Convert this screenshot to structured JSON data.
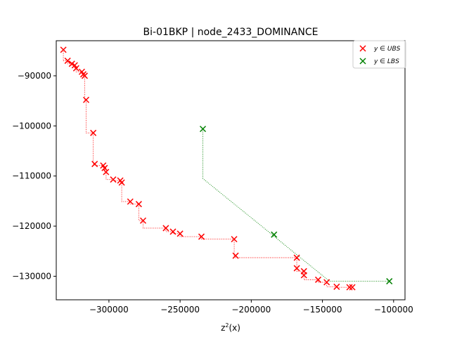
{
  "chart_data": {
    "type": "scatter",
    "title": "Bi-01BKP | node_2433_DOMINANCE",
    "xlabel": "z²(x)",
    "ylabel": "",
    "xlim": [
      -337000,
      -92000
    ],
    "ylim": [
      -134700,
      -83000
    ],
    "xticks": [
      -300000,
      -250000,
      -200000,
      -150000,
      -100000
    ],
    "xtick_labels": [
      "−300000",
      "−250000",
      "−200000",
      "−150000",
      "−100000"
    ],
    "yticks": [
      -90000,
      -100000,
      -110000,
      -120000,
      -130000
    ],
    "ytick_labels": [
      "−90000",
      "−100000",
      "−110000",
      "−120000",
      "−130000"
    ],
    "grid": false,
    "legend_position": "top-right",
    "series": [
      {
        "name": "y ∈ UBS",
        "marker": "x",
        "color": "#ff0000",
        "connect": "staircase-dotted",
        "points": [
          [
            -332000,
            -84800
          ],
          [
            -329000,
            -87000
          ],
          [
            -326000,
            -87600
          ],
          [
            -324000,
            -87900
          ],
          [
            -323000,
            -88500
          ],
          [
            -319000,
            -89200
          ],
          [
            -318000,
            -89700
          ],
          [
            -317000,
            -90000
          ],
          [
            -316000,
            -94800
          ],
          [
            -311000,
            -101400
          ],
          [
            -310000,
            -107600
          ],
          [
            -304000,
            -107900
          ],
          [
            -303000,
            -108400
          ],
          [
            -302000,
            -109200
          ],
          [
            -297000,
            -110700
          ],
          [
            -292000,
            -110900
          ],
          [
            -291000,
            -111300
          ],
          [
            -285000,
            -115100
          ],
          [
            -279000,
            -115600
          ],
          [
            -276000,
            -118900
          ],
          [
            -260000,
            -120400
          ],
          [
            -255000,
            -121100
          ],
          [
            -250000,
            -121500
          ],
          [
            -235000,
            -122100
          ],
          [
            -212000,
            -122600
          ],
          [
            -211000,
            -125900
          ],
          [
            -168000,
            -126300
          ],
          [
            -168000,
            -128400
          ],
          [
            -163000,
            -129000
          ],
          [
            -163000,
            -129800
          ],
          [
            -153000,
            -130700
          ],
          [
            -147000,
            -131200
          ],
          [
            -140000,
            -132100
          ],
          [
            -131000,
            -132200
          ],
          [
            -129000,
            -132200
          ]
        ]
      },
      {
        "name": "y ∈ LBS",
        "marker": "x",
        "color": "#008000",
        "connect": "dotted",
        "points": [
          [
            -234000,
            -100600
          ],
          [
            -184000,
            -121700
          ],
          [
            -103000,
            -131000
          ]
        ],
        "path": [
          [
            -234000,
            -100600
          ],
          [
            -234000,
            -110500
          ],
          [
            -145000,
            -131000
          ],
          [
            -103000,
            -131000
          ]
        ]
      }
    ]
  }
}
